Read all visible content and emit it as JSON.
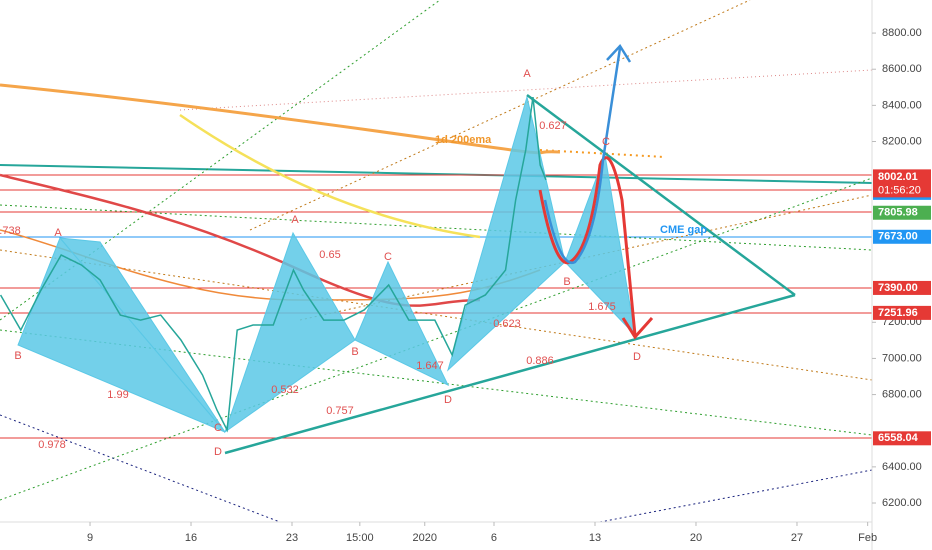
{
  "chart_data": {
    "type": "line",
    "series": [
      {
        "name": "BTCUSD",
        "color": "#26a69a",
        "x": [
          1.8,
          3.2,
          4.6,
          6.0,
          7.4,
          8.7,
          10.1,
          11.5,
          12.9,
          14.3,
          15.8,
          16.8,
          17.5,
          18.2,
          19.3,
          20.7,
          22.1,
          22.8,
          24.2,
          25.6,
          27.0,
          28.7,
          30.1,
          31.9,
          33.1,
          34.0,
          35.4,
          36.8,
          37.5,
          38.2,
          38.7,
          39.2,
          39.6
        ],
        "values": [
          7351,
          7157,
          7378,
          7572,
          7517,
          7434,
          7240,
          7212,
          7240,
          7102,
          6908,
          6714,
          6604,
          7157,
          7185,
          7185,
          7489,
          7378,
          7212,
          7212,
          7268,
          7406,
          7212,
          7212,
          7019,
          7295,
          7351,
          7489,
          7876,
          8153,
          8446,
          8070,
          7987
        ]
      }
    ],
    "xlim": [
      1.76,
      62.2
    ],
    "ylim": [
      6095,
      8983
    ],
    "xticks": [
      {
        "value": 8,
        "label": "9"
      },
      {
        "value": 15,
        "label": "16"
      },
      {
        "value": 22,
        "label": "23"
      },
      {
        "value": 26.7,
        "label": "15:00"
      },
      {
        "value": 31.2,
        "label": "2020"
      },
      {
        "value": 36,
        "label": "6"
      },
      {
        "value": 43,
        "label": "13"
      },
      {
        "value": 50,
        "label": "20"
      },
      {
        "value": 57,
        "label": "27"
      },
      {
        "value": 61.9,
        "label": "Feb"
      }
    ],
    "yticks": [
      {
        "value": 8800,
        "label": "8800.00"
      },
      {
        "value": 8600,
        "label": "8600.00"
      },
      {
        "value": 8400,
        "label": "8400.00"
      },
      {
        "value": 8200,
        "label": "8200.00"
      },
      {
        "value": 7200,
        "label": "7200.00"
      },
      {
        "value": 7000,
        "label": "7000.00"
      },
      {
        "value": 6800,
        "label": "6800.00"
      },
      {
        "value": 6400,
        "label": "6400.00"
      },
      {
        "value": 6200,
        "label": "6200.00"
      }
    ],
    "price_lines": [
      {
        "value": 8007.23,
        "color": "#e53935"
      },
      {
        "value": 8002.01,
        "label": "8002.01",
        "color": "#e53935"
      },
      {
        "value": 7915.95,
        "color": "#2196f3"
      },
      {
        "value": 7805.98,
        "color": "#4caf50"
      },
      {
        "value": 7673,
        "label": "7673.00",
        "color": "#2196f3"
      },
      {
        "value": 7390,
        "label": "7390.00",
        "color": "#e53935"
      },
      {
        "value": 7251.96,
        "color": "#e53935"
      },
      {
        "value": 6558.04,
        "color": "#e53935"
      }
    ],
    "countdown": "01:56:20",
    "annotations": [
      "1d 200ema",
      "CME gap",
      "A",
      "B",
      "C",
      "D",
      "A",
      "B",
      "C",
      "D",
      "A",
      "B",
      "C",
      "D",
      "0.627",
      "0.65",
      "1.99",
      "0.532",
      "0.757",
      "1.647",
      "0.623",
      "0.886",
      "1.675",
      "0.978",
      ".738"
    ]
  }
}
